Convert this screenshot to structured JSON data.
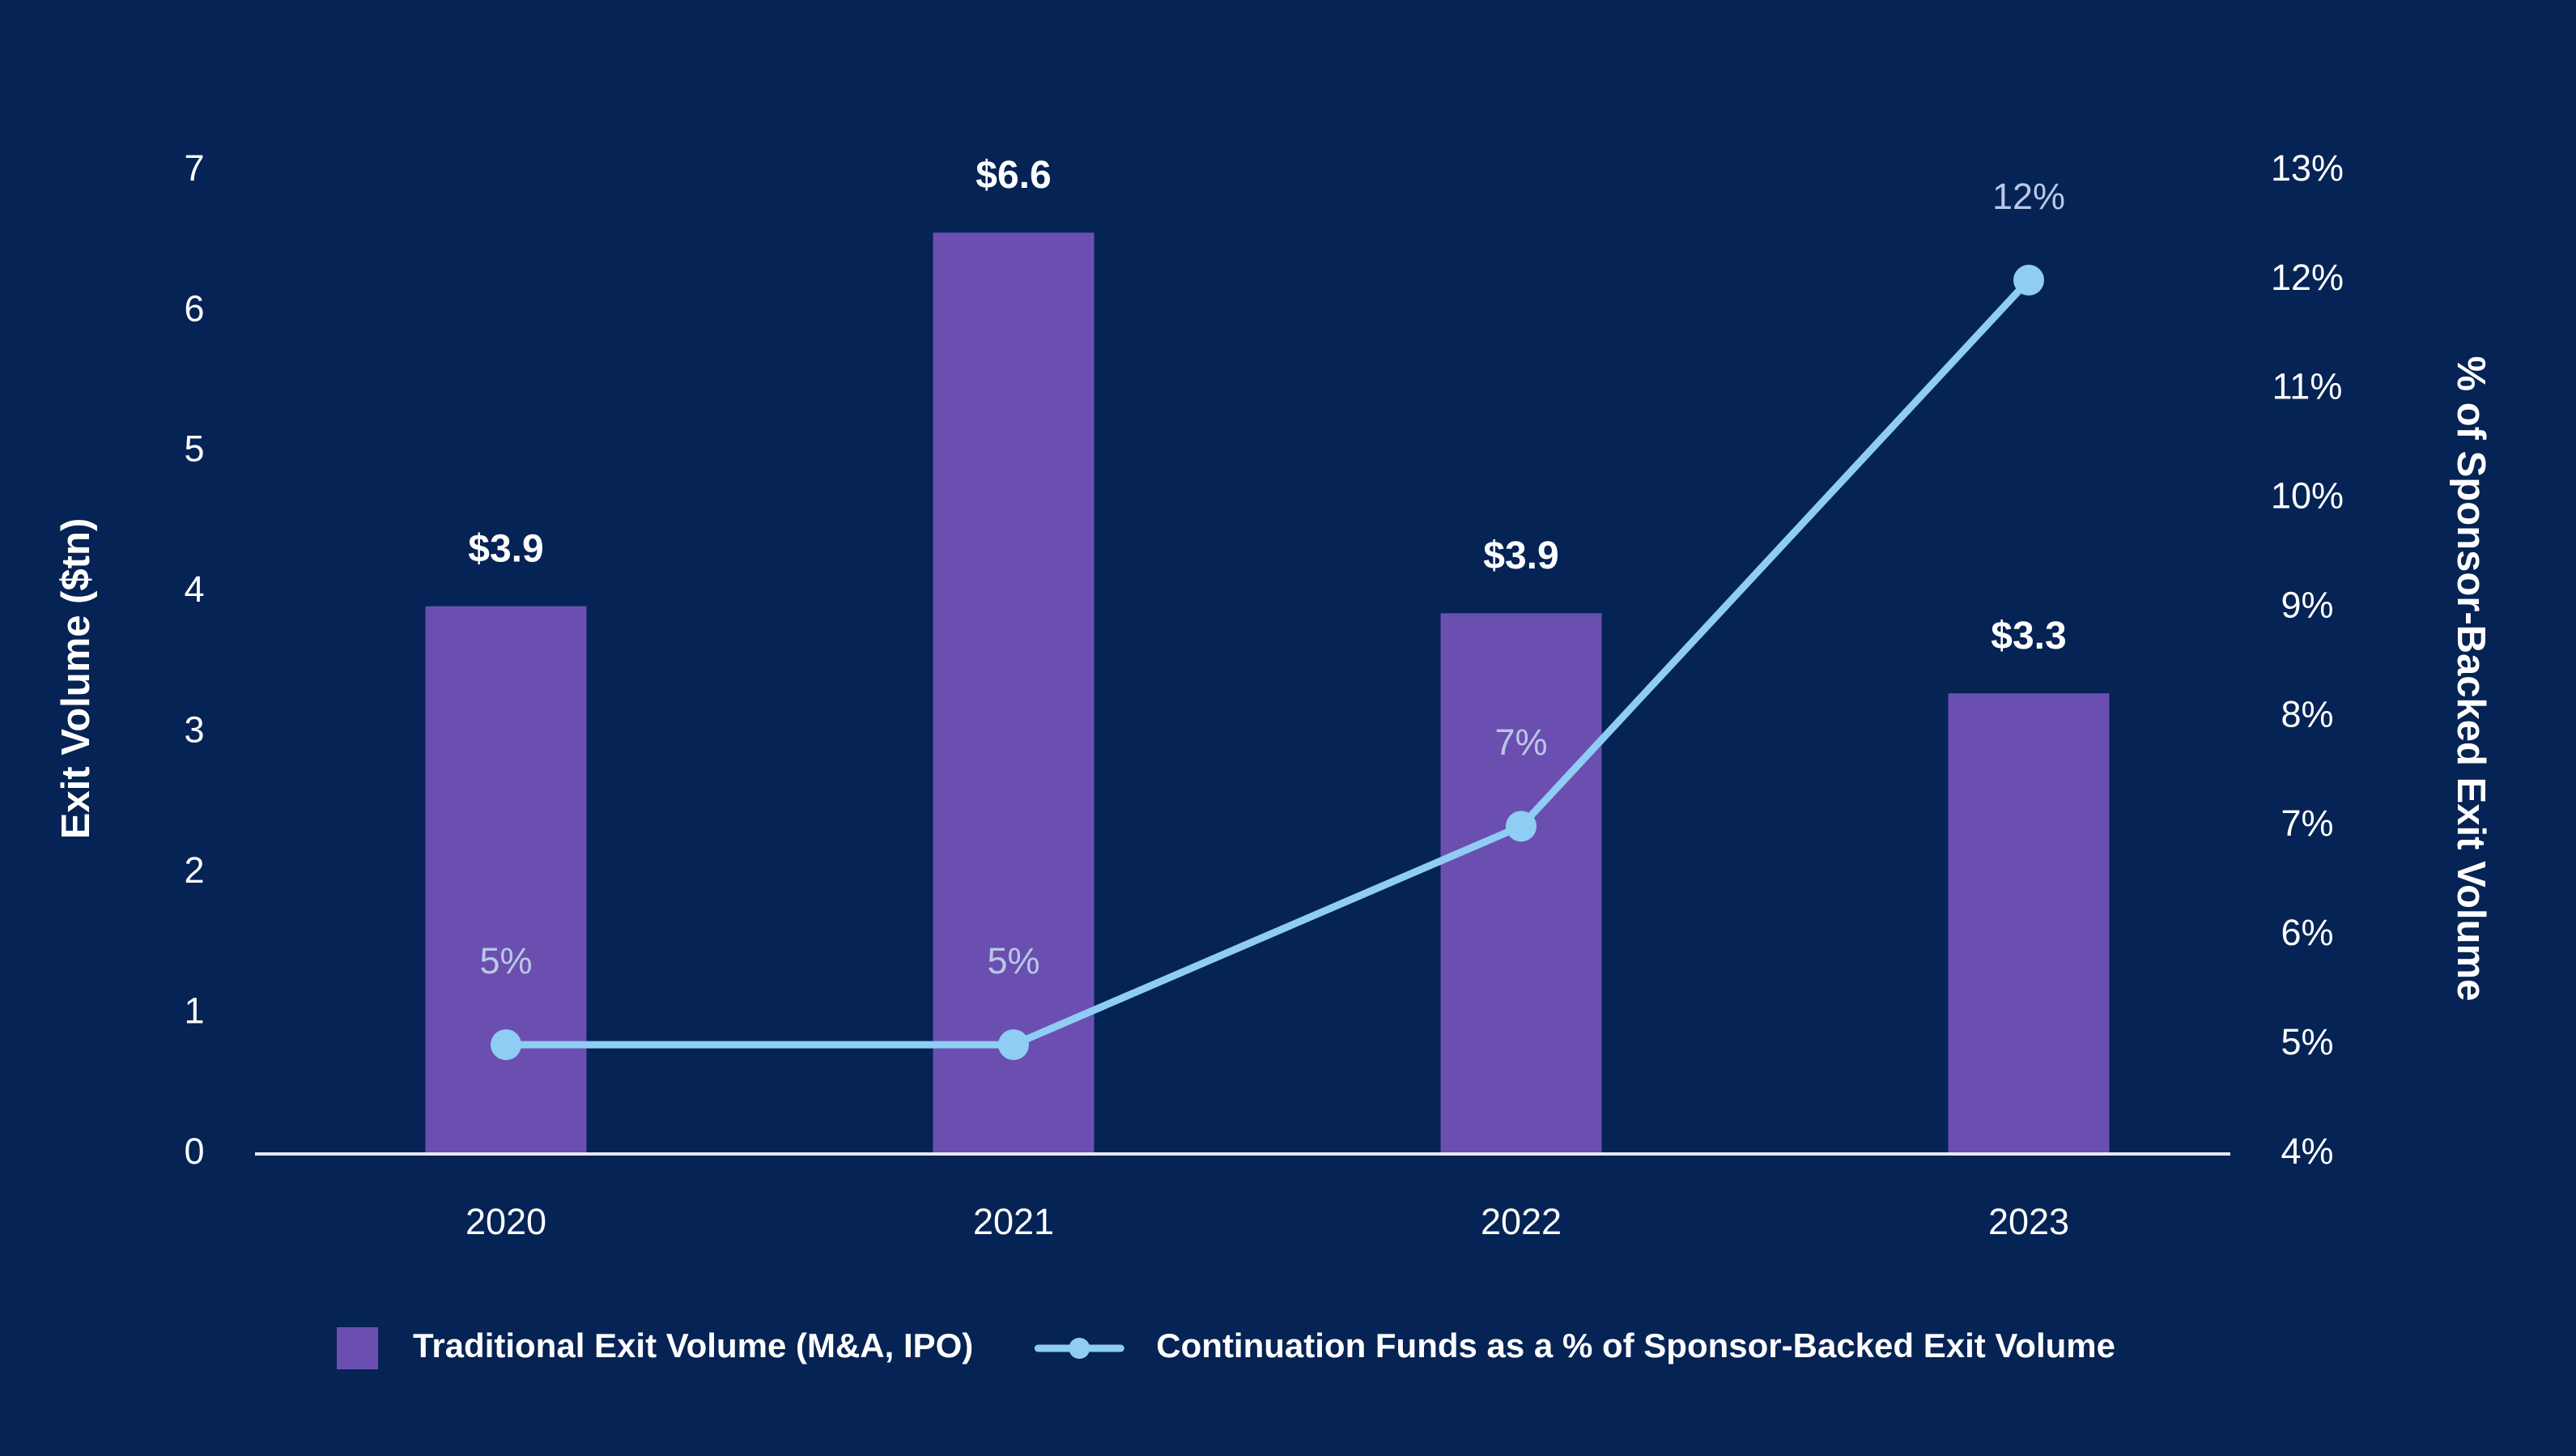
{
  "chart_data": {
    "type": "bar",
    "categories": [
      "2020",
      "2021",
      "2022",
      "2023"
    ],
    "ylabel": "Exit Volume ($tn)",
    "y2label": "% of Sponsor-Backed Exit Volume",
    "ylim": [
      0,
      7
    ],
    "yticks": [
      0,
      1,
      2,
      3,
      4,
      5,
      6,
      7
    ],
    "y2lim": [
      4,
      13
    ],
    "y2ticks": [
      {
        "value": 4,
        "label": "4%"
      },
      {
        "value": 5,
        "label": "5%"
      },
      {
        "value": 6,
        "label": "6%"
      },
      {
        "value": 7,
        "label": "7%"
      },
      {
        "value": 8,
        "label": "8%"
      },
      {
        "value": 9,
        "label": "9%"
      },
      {
        "value": 10,
        "label": "10%"
      },
      {
        "value": 11,
        "label": "11%"
      },
      {
        "value": 12,
        "label": "12%"
      },
      {
        "value": 13,
        "label": "13%"
      }
    ],
    "series": [
      {
        "name": "Traditional Exit Volume (M&A, IPO)",
        "type": "bar",
        "color": "#6b4fb0",
        "values": [
          3.9,
          6.56,
          3.85,
          3.28
        ],
        "value_labels": [
          "$3.9",
          "$6.6",
          "$3.9",
          "$3.3"
        ]
      },
      {
        "name": "Continuation Funds as a % of Sponsor-Backed Exit Volume",
        "type": "line",
        "axis": "y2",
        "color": "#8fcdf5",
        "values": [
          5,
          5,
          7,
          12
        ],
        "value_labels": [
          "5%",
          "5%",
          "7%",
          "12%"
        ]
      }
    ]
  }
}
